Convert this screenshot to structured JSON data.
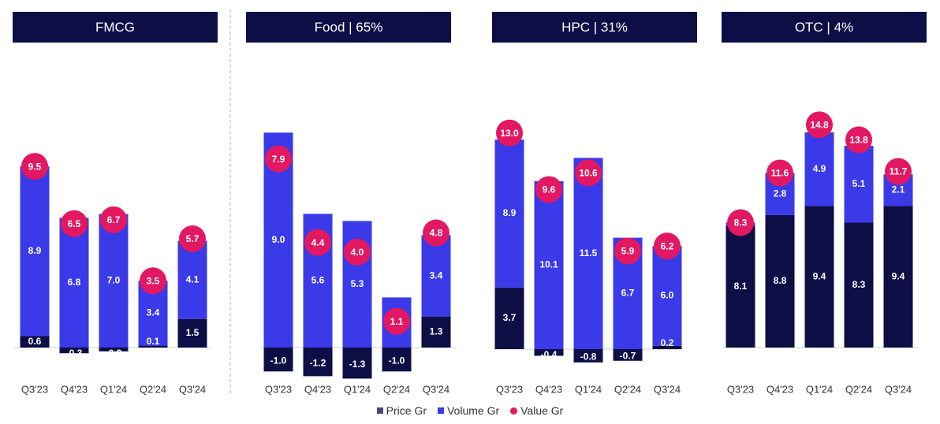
{
  "colors": {
    "header_bg": "#0d0e45",
    "price": "#0d0e45",
    "volume": "#3a3ae8",
    "value": "#e31862",
    "price_legend": "#4a4a7a"
  },
  "legend": {
    "price": "Price Gr",
    "volume": "Volume Gr",
    "value": "Value Gr"
  },
  "chart_data": [
    {
      "type": "bar",
      "title": "FMCG",
      "categories": [
        "Q3'23",
        "Q4'23",
        "Q1'24",
        "Q2'24",
        "Q3'24"
      ],
      "series": [
        {
          "name": "Price Gr",
          "values": [
            0.6,
            -0.3,
            -0.2,
            0.1,
            1.5
          ]
        },
        {
          "name": "Volume Gr",
          "values": [
            8.9,
            6.8,
            7.0,
            3.4,
            4.1
          ]
        },
        {
          "name": "Value Gr",
          "values": [
            9.5,
            6.5,
            6.7,
            3.5,
            5.7
          ]
        }
      ]
    },
    {
      "type": "bar",
      "title": "Food | 65%",
      "categories": [
        "Q3'23",
        "Q4'23",
        "Q1'24",
        "Q2'24",
        "Q3'24"
      ],
      "series": [
        {
          "name": "Price Gr",
          "values": [
            -1.0,
            -1.2,
            -1.3,
            -1.0,
            1.3
          ]
        },
        {
          "name": "Volume Gr",
          "values": [
            9.0,
            5.6,
            5.3,
            2.1,
            3.4
          ]
        },
        {
          "name": "Value Gr",
          "values": [
            7.9,
            4.4,
            4.0,
            1.1,
            4.8
          ]
        }
      ]
    },
    {
      "type": "bar",
      "title": "HPC | 31%",
      "categories": [
        "Q3'23",
        "Q4'23",
        "Q1'24",
        "Q2'24",
        "Q3'24"
      ],
      "series": [
        {
          "name": "Price Gr",
          "values": [
            3.7,
            -0.4,
            -0.8,
            -0.7,
            0.2
          ]
        },
        {
          "name": "Volume Gr",
          "values": [
            8.9,
            10.1,
            11.5,
            6.7,
            6.0
          ]
        },
        {
          "name": "Value Gr",
          "values": [
            13.0,
            9.6,
            10.6,
            5.9,
            6.2
          ]
        }
      ]
    },
    {
      "type": "bar",
      "title": "OTC | 4%",
      "categories": [
        "Q3'23",
        "Q4'23",
        "Q1'24",
        "Q2'24",
        "Q3'24"
      ],
      "series": [
        {
          "name": "Price Gr",
          "values": [
            8.1,
            8.8,
            9.4,
            8.3,
            9.4
          ]
        },
        {
          "name": "Volume Gr",
          "values": [
            0.2,
            2.8,
            4.9,
            5.1,
            2.1
          ]
        },
        {
          "name": "Value Gr",
          "values": [
            8.3,
            11.6,
            14.8,
            13.8,
            11.7
          ]
        }
      ]
    }
  ]
}
